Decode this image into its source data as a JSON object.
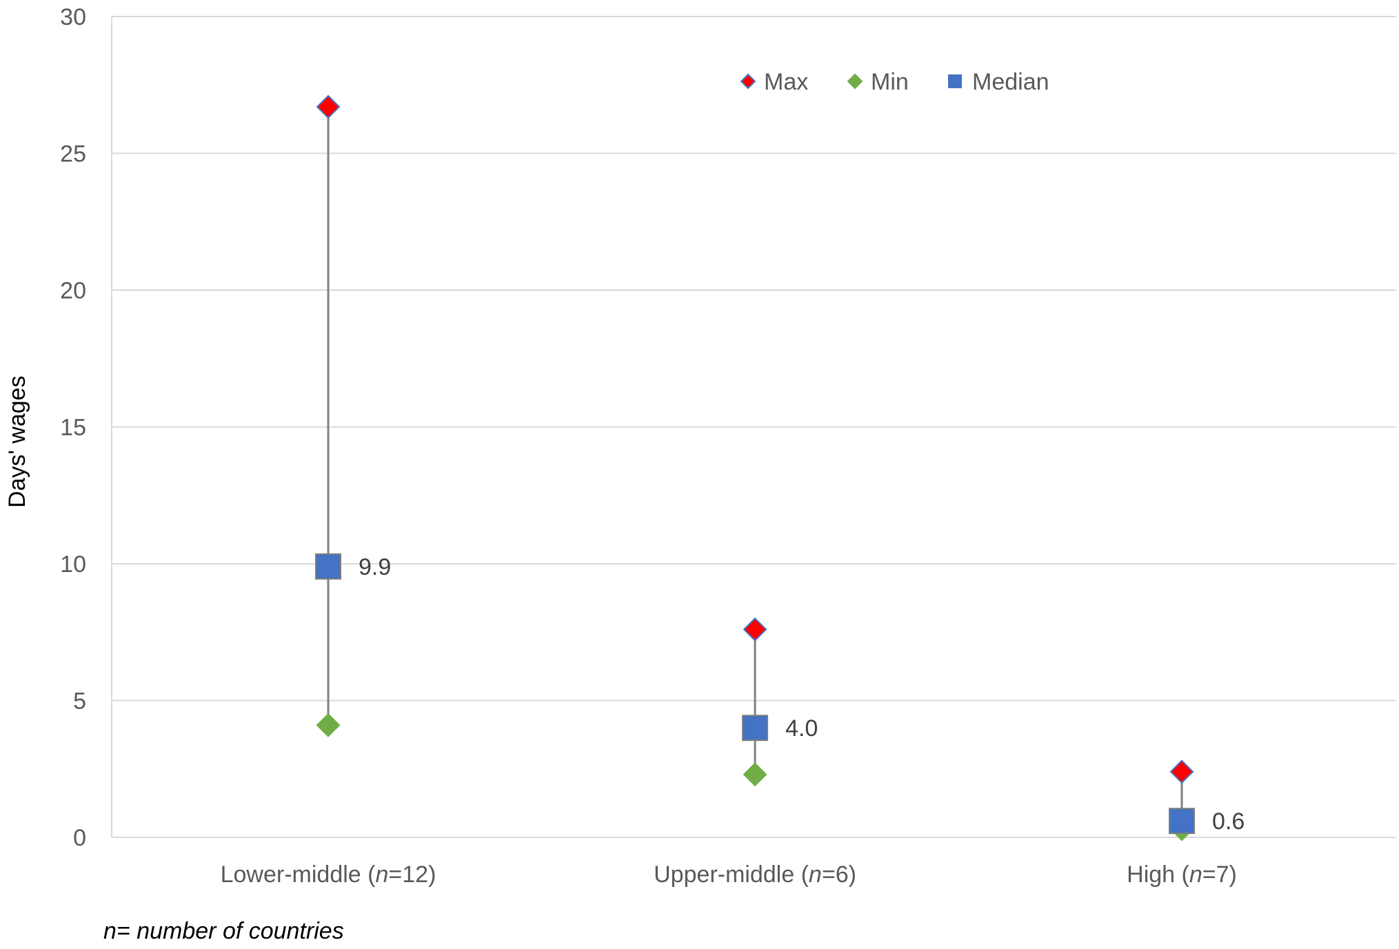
{
  "chart_data": {
    "type": "scatter",
    "subtype": "high-low-median",
    "title": "",
    "xlabel": "",
    "ylabel": "Days' wages",
    "ylim": [
      0,
      30
    ],
    "yticks": [
      0,
      5,
      10,
      15,
      20,
      25,
      30
    ],
    "grid": true,
    "legend_position": "top-center",
    "categories": [
      {
        "prefix": "Lower-middle (",
        "n": "n",
        "suffix": "=12)"
      },
      {
        "prefix": "Upper-middle (",
        "n": "n",
        "suffix": "=6)"
      },
      {
        "prefix": "High (",
        "n": "n",
        "suffix": "=7)"
      }
    ],
    "series": [
      {
        "name": "Max",
        "values": [
          26.7,
          7.6,
          2.4
        ],
        "color": "#ff0000",
        "marker": "diamond"
      },
      {
        "name": "Min",
        "values": [
          4.1,
          2.3,
          0.3
        ],
        "color": "#70ad47",
        "marker": "diamond"
      },
      {
        "name": "Median",
        "values": [
          9.9,
          4.0,
          0.6
        ],
        "color": "#4472c4",
        "marker": "square",
        "labels": [
          "9.9",
          "4.0",
          "0.6"
        ]
      }
    ],
    "footnote": "n= number of countries"
  }
}
